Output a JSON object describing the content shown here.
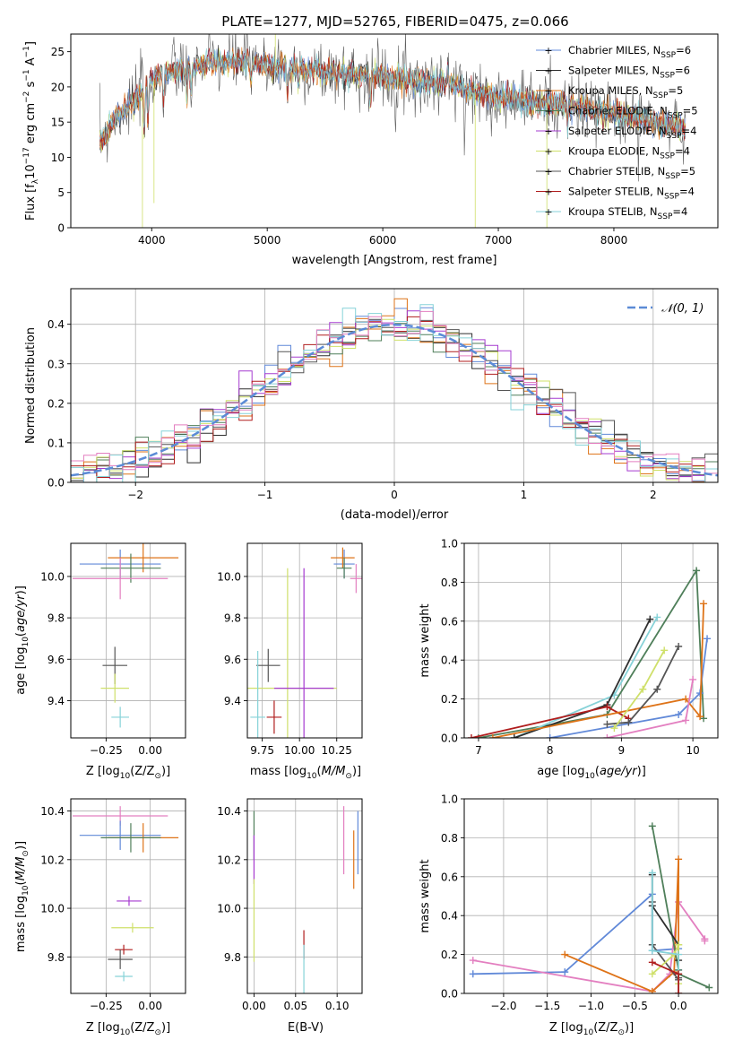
{
  "colors": {
    "Chabrier MILES": "#6189d8",
    "Salpeter MILES": "#2e2e2e",
    "Kroupa MILES": "#de7318",
    "Chabrier ELODIE": "#4f7f5a",
    "Salpeter ELODIE": "#a63bd0",
    "Kroupa ELODIE": "#cfe06a",
    "Chabrier STELIB": "#555555",
    "Salpeter STELIB": "#b01e1e",
    "Kroupa STELIB": "#86d2d8",
    "pink": "#e37fc0",
    "normal": "#5b8bd6"
  },
  "chart_data": [
    {
      "id": "spectrum",
      "type": "line",
      "title": "PLATE=1277, MJD=52765, FIBERID=0475, z=0.066",
      "xlabel": "wavelength [Angstrom, rest frame]",
      "ylabel_main": "Flux [f",
      "ylabel_sub": "λ",
      "ylabel_rest": "10",
      "ylabel_sup1": "−17",
      "ylabel_mid": " erg cm",
      "ylabel_sup2": "−2",
      "ylabel_s": " s",
      "ylabel_sup3": "−1",
      "ylabel_end": " A",
      "ylabel_sup4": "−1",
      "ylabel_close": "]",
      "xlim": [
        3300,
        8900
      ],
      "ylim": [
        0,
        27.5
      ],
      "xticks": [
        4000,
        5000,
        6000,
        7000,
        8000
      ],
      "yticks": [
        0,
        5,
        10,
        15,
        20,
        25
      ],
      "legend_position": "top-right",
      "legend": [
        {
          "name": "Chabrier MILES",
          "nssp": "6"
        },
        {
          "name": "Salpeter MILES",
          "nssp": "6"
        },
        {
          "name": "Kroupa MILES",
          "nssp": "5"
        },
        {
          "name": "Chabrier ELODIE",
          "nssp": "5"
        },
        {
          "name": "Salpeter ELODIE",
          "nssp": "4"
        },
        {
          "name": "Kroupa ELODIE",
          "nssp": "4"
        },
        {
          "name": "Chabrier STELIB",
          "nssp": "5"
        },
        {
          "name": "Salpeter STELIB",
          "nssp": "4"
        },
        {
          "name": "Kroupa STELIB",
          "nssp": "4"
        }
      ],
      "legend_sub": "SSP",
      "legend_prefix": "N",
      "continuum": [
        [
          3550,
          12
        ],
        [
          3700,
          16
        ],
        [
          3850,
          18
        ],
        [
          3950,
          20
        ],
        [
          4100,
          22
        ],
        [
          4300,
          22.5
        ],
        [
          4500,
          23.5
        ],
        [
          4800,
          23.5
        ],
        [
          5200,
          22.5
        ],
        [
          5600,
          22
        ],
        [
          6000,
          21.5
        ],
        [
          6500,
          20.5
        ],
        [
          7000,
          18.5
        ],
        [
          7500,
          17.5
        ],
        [
          8000,
          16.2
        ],
        [
          8500,
          14.5
        ],
        [
          8600,
          14
        ]
      ]
    },
    {
      "id": "residual_hist",
      "type": "histogram",
      "xlabel": "(data-model)/error",
      "ylabel": "Normed distribution",
      "xlim": [
        -2.5,
        2.5
      ],
      "ylim": [
        0,
        0.49
      ],
      "xticks": [
        -2,
        -1,
        0,
        1,
        2
      ],
      "yticks": [
        0.0,
        0.1,
        0.2,
        0.3,
        0.4
      ],
      "legend": "𝒩(0, 1)",
      "legend_position": "top-right",
      "bin_width": 0.1,
      "bin_start": -2.5
    },
    {
      "id": "z_age",
      "type": "scatter-errorbar",
      "xlabel": "Z [log",
      "xlabel_sub": "10",
      "xlabel_rest": "(Z/Z",
      "xlabel_odot": "⊙",
      "xlabel_end": ")]",
      "ylabel": "age  [log",
      "ylabel_sub": "10",
      "ylabel_rest": "(age/yr)]",
      "xlim": [
        -0.45,
        0.2
      ],
      "ylim": [
        9.22,
        10.16
      ],
      "xticks": [
        -0.25,
        0.0
      ],
      "yticks": [
        9.4,
        9.6,
        9.8,
        10.0
      ],
      "points": [
        {
          "x": -0.17,
          "y": 10.06,
          "xerr": 0.23,
          "yerr": 0.07,
          "c": "Chabrier MILES"
        },
        {
          "x": -0.04,
          "y": 10.09,
          "xerr": 0.2,
          "yerr": 0.07,
          "c": "Kroupa MILES"
        },
        {
          "x": -0.11,
          "y": 10.04,
          "xerr": 0.17,
          "yerr": 0.07,
          "c": "Chabrier ELODIE"
        },
        {
          "x": -0.17,
          "y": 9.99,
          "xerr": 0.27,
          "yerr": 0.1,
          "c": "pink"
        },
        {
          "x": -0.2,
          "y": 9.57,
          "xerr": 0.07,
          "yerr": 0.09,
          "c": "Chabrier STELIB"
        },
        {
          "x": -0.2,
          "y": 9.46,
          "xerr": 0.08,
          "yerr": 0.07,
          "c": "Kroupa ELODIE"
        },
        {
          "x": -0.17,
          "y": 9.32,
          "xerr": 0.05,
          "yerr": 0.05,
          "c": "Kroupa STELIB"
        }
      ]
    },
    {
      "id": "mass_age",
      "type": "scatter-errorbar",
      "xlabel": "mass [log",
      "xlabel_sub": "10",
      "xlabel_rest": "(M/M",
      "xlabel_odot": "⊙",
      "xlabel_end": ")]",
      "xlim": [
        9.65,
        10.42
      ],
      "ylim": [
        9.22,
        10.16
      ],
      "xticks": [
        9.75,
        10.0,
        10.25
      ],
      "yticks": [
        9.4,
        9.6,
        9.8,
        10.0
      ],
      "points": [
        {
          "x": 10.3,
          "y": 10.06,
          "xerr": 0.07,
          "yerr": 0.07,
          "c": "Chabrier MILES"
        },
        {
          "x": 10.29,
          "y": 10.09,
          "xerr": 0.08,
          "yerr": 0.05,
          "c": "Kroupa MILES"
        },
        {
          "x": 10.38,
          "y": 9.99,
          "xerr": 0.04,
          "yerr": 0.07,
          "c": "pink"
        },
        {
          "x": 10.3,
          "y": 10.04,
          "xerr": 0.05,
          "yerr": 0.05,
          "c": "Chabrier ELODIE"
        },
        {
          "x": 9.79,
          "y": 9.57,
          "xerr": 0.08,
          "yerr": 0.08,
          "c": "Chabrier STELIB"
        },
        {
          "x": 9.92,
          "y": 9.46,
          "xerr": 0.33,
          "yerr": 0.58,
          "c": "Kroupa ELODIE"
        },
        {
          "x": 10.03,
          "y": 9.46,
          "xerr": 0.2,
          "yerr": 0.58,
          "c": "Salpeter ELODIE"
        },
        {
          "x": 9.83,
          "y": 9.32,
          "xerr": 0.05,
          "yerr": 0.08,
          "c": "Salpeter STELIB"
        },
        {
          "x": 9.72,
          "y": 9.32,
          "xerr": 0.05,
          "yerr": 0.32,
          "c": "Kroupa STELIB"
        }
      ]
    },
    {
      "id": "age_weight",
      "type": "line",
      "xlabel": "age  [log",
      "xlabel_sub": "10",
      "xlabel_rest": "(age/yr)]",
      "ylabel": "mass weight",
      "xlim": [
        6.8,
        10.35
      ],
      "ylim": [
        0,
        1.0
      ],
      "xticks": [
        7,
        8,
        9,
        10
      ],
      "yticks": [
        0.0,
        0.2,
        0.4,
        0.6,
        0.8,
        1.0
      ],
      "series": [
        {
          "c": "Chabrier ELODIE",
          "x": [
            7.0,
            8.8,
            10.05,
            10.15
          ],
          "y": [
            0.0,
            0.12,
            0.86,
            0.1
          ]
        },
        {
          "c": "Kroupa STELIB",
          "x": [
            7.5,
            8.9,
            9.5
          ],
          "y": [
            0.0,
            0.22,
            0.62
          ]
        },
        {
          "c": "Salpeter MILES",
          "x": [
            7.5,
            8.8,
            9.4
          ],
          "y": [
            0.0,
            0.17,
            0.61
          ]
        },
        {
          "c": "Salpeter STELIB",
          "x": [
            6.9,
            8.8,
            9.1
          ],
          "y": [
            0.0,
            0.16,
            0.1
          ]
        },
        {
          "c": "Chabrier MILES",
          "x": [
            8.0,
            9.8,
            10.1,
            10.2
          ],
          "y": [
            0.0,
            0.12,
            0.23,
            0.51
          ]
        },
        {
          "c": "Kroupa MILES",
          "x": [
            7.2,
            9.9,
            10.1,
            10.15
          ],
          "y": [
            0.0,
            0.2,
            0.11,
            0.69
          ]
        },
        {
          "c": "Chabrier STELIB",
          "x": [
            8.8,
            9.1,
            9.5,
            9.8
          ],
          "y": [
            0.07,
            0.08,
            0.25,
            0.47
          ]
        },
        {
          "c": "Kroupa ELODIE",
          "x": [
            8.9,
            9.3,
            9.6
          ],
          "y": [
            0.05,
            0.25,
            0.45
          ]
        },
        {
          "c": "pink",
          "x": [
            8.8,
            9.9,
            10.0
          ],
          "y": [
            0.0,
            0.09,
            0.3
          ]
        }
      ]
    },
    {
      "id": "z_mass",
      "type": "scatter-errorbar",
      "ylabel": "mass [log",
      "ylabel_sub": "10",
      "ylabel_rest": "(M/M",
      "ylabel_odot": "⊙",
      "ylabel_end": ")]",
      "xlabel": "Z [log",
      "xlabel_sub": "10",
      "xlabel_rest": "(Z/Z",
      "xlabel_odot": "⊙",
      "xlabel_end": ")]",
      "xlim": [
        -0.45,
        0.2
      ],
      "ylim": [
        9.65,
        10.45
      ],
      "xticks": [
        -0.25,
        0.0
      ],
      "yticks": [
        9.8,
        10.0,
        10.2,
        10.4
      ],
      "points": [
        {
          "x": -0.17,
          "y": 10.38,
          "xerr": 0.27,
          "yerr": 0.04,
          "c": "pink"
        },
        {
          "x": -0.17,
          "y": 10.3,
          "xerr": 0.23,
          "yerr": 0.06,
          "c": "Chabrier MILES"
        },
        {
          "x": -0.04,
          "y": 10.29,
          "xerr": 0.2,
          "yerr": 0.06,
          "c": "Kroupa MILES"
        },
        {
          "x": -0.11,
          "y": 10.29,
          "xerr": 0.17,
          "yerr": 0.06,
          "c": "Chabrier ELODIE"
        },
        {
          "x": -0.12,
          "y": 10.03,
          "xerr": 0.07,
          "yerr": 0.02,
          "c": "Salpeter ELODIE"
        },
        {
          "x": -0.1,
          "y": 9.92,
          "xerr": 0.12,
          "yerr": 0.02,
          "c": "Kroupa ELODIE"
        },
        {
          "x": -0.15,
          "y": 9.83,
          "xerr": 0.05,
          "yerr": 0.02,
          "c": "Salpeter STELIB"
        },
        {
          "x": -0.17,
          "y": 9.79,
          "xerr": 0.07,
          "yerr": 0.04,
          "c": "Chabrier STELIB"
        },
        {
          "x": -0.15,
          "y": 9.72,
          "xerr": 0.05,
          "yerr": 0.02,
          "c": "Kroupa STELIB"
        }
      ]
    },
    {
      "id": "ebv_mass",
      "type": "scatter-errorbar",
      "xlabel": "E(B-V)",
      "xlim": [
        -0.008,
        0.13
      ],
      "ylim": [
        9.65,
        10.45
      ],
      "xticks": [
        0.0,
        0.05,
        0.1
      ],
      "yticks": [
        9.8,
        10.0,
        10.2,
        10.4
      ],
      "points": [
        {
          "x": 0.0,
          "y": 10.3,
          "xerr": 0,
          "yerr": 0.1,
          "c": "Chabrier ELODIE"
        },
        {
          "x": 0.0,
          "y": 10.2,
          "xerr": 0,
          "yerr": 0.1,
          "c": "Salpeter ELODIE"
        },
        {
          "x": 0.0,
          "y": 9.95,
          "xerr": 0,
          "yerr": 0.17,
          "c": "Kroupa ELODIE"
        },
        {
          "x": 0.06,
          "y": 9.85,
          "xerr": 0,
          "yerr": 0.06,
          "c": "Salpeter STELIB"
        },
        {
          "x": 0.06,
          "y": 9.75,
          "xerr": 0,
          "yerr": 0.1,
          "c": "Kroupa STELIB"
        },
        {
          "x": 0.108,
          "y": 10.28,
          "xerr": 0,
          "yerr": 0.14,
          "c": "pink"
        },
        {
          "x": 0.12,
          "y": 10.2,
          "xerr": 0,
          "yerr": 0.12,
          "c": "Kroupa MILES"
        },
        {
          "x": 0.125,
          "y": 10.27,
          "xerr": 0,
          "yerr": 0.13,
          "c": "Chabrier MILES"
        }
      ]
    },
    {
      "id": "z_weight",
      "type": "line",
      "xlabel": "Z [log",
      "xlabel_sub": "10",
      "xlabel_rest": "(Z/Z",
      "xlabel_odot": "⊙",
      "xlabel_end": ")]",
      "ylabel": "mass weight",
      "xlim": [
        -2.45,
        0.45
      ],
      "ylim": [
        0,
        1.0
      ],
      "xticks": [
        -2.0,
        -1.5,
        -1.0,
        -0.5,
        0.0
      ],
      "yticks": [
        0.0,
        0.2,
        0.4,
        0.6,
        0.8,
        1.0
      ],
      "series": [
        {
          "c": "Chabrier MILES",
          "x": [
            -2.35,
            -1.3,
            -0.3,
            -0.3,
            0.0,
            0.0
          ],
          "y": [
            0.1,
            0.11,
            0.51,
            0.22,
            0.23,
            0.12
          ]
        },
        {
          "c": "pink",
          "x": [
            -2.35,
            -0.3,
            -0.1,
            0.0,
            0.3,
            0.3
          ],
          "y": [
            0.17,
            0.01,
            0.1,
            0.47,
            0.28,
            0.27
          ]
        },
        {
          "c": "Kroupa MILES",
          "x": [
            -1.3,
            -0.3,
            -0.05,
            0.0,
            0.0
          ],
          "y": [
            0.2,
            0.01,
            0.11,
            0.69,
            0.0
          ]
        },
        {
          "c": "Chabrier ELODIE",
          "x": [
            -0.3,
            0.0,
            0.0,
            0.35
          ],
          "y": [
            0.86,
            0.12,
            0.1,
            0.03
          ]
        },
        {
          "c": "Salpeter MILES",
          "x": [
            -0.3,
            -0.3,
            0.0,
            0.0
          ],
          "y": [
            0.61,
            0.45,
            0.25,
            0.17
          ]
        },
        {
          "c": "Chabrier STELIB",
          "x": [
            -0.3,
            -0.3,
            0.0,
            0.0
          ],
          "y": [
            0.47,
            0.25,
            0.07,
            0.08
          ]
        },
        {
          "c": "Kroupa ELODIE",
          "x": [
            -0.3,
            -0.05,
            0.0,
            0.0
          ],
          "y": [
            0.1,
            0.2,
            0.25,
            0.05
          ]
        },
        {
          "c": "Kroupa STELIB",
          "x": [
            -0.3,
            -0.3,
            0.0,
            0.0
          ],
          "y": [
            0.62,
            0.22,
            0.2,
            0.0
          ]
        },
        {
          "c": "Salpeter STELIB",
          "x": [
            -0.3,
            0.0,
            0.0
          ],
          "y": [
            0.16,
            0.1,
            0.0
          ]
        }
      ]
    }
  ]
}
